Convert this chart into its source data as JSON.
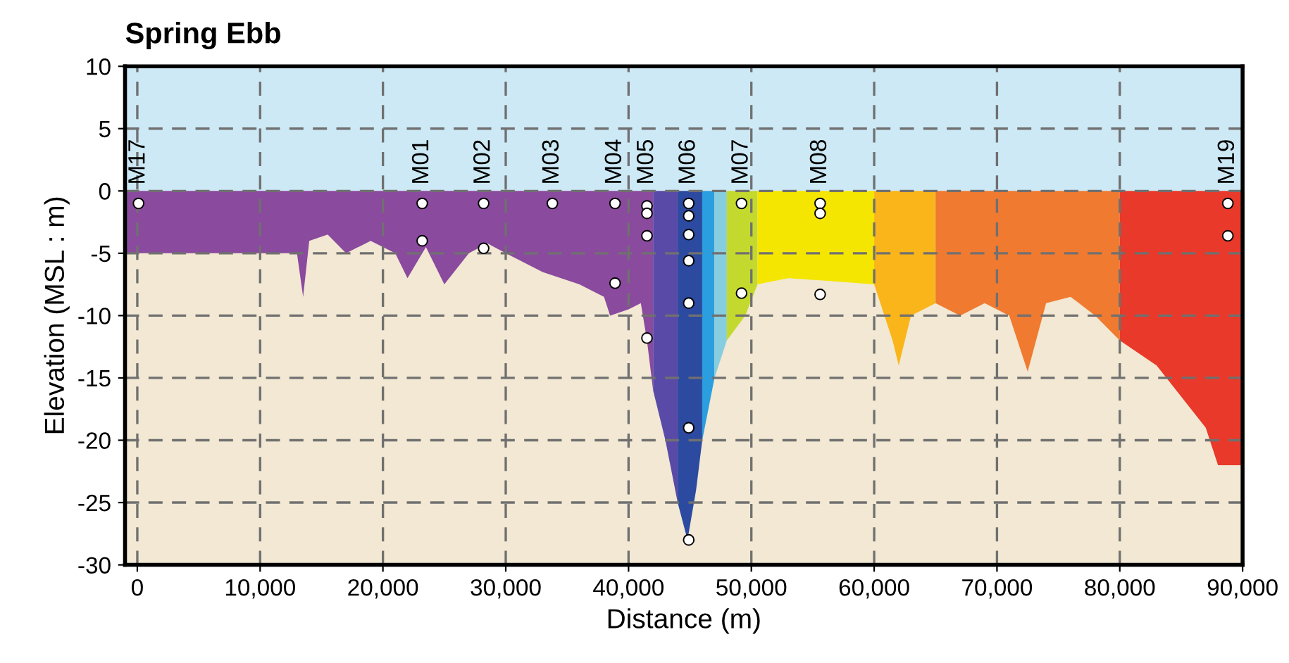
{
  "chart_data": {
    "type": "scatter",
    "title": "Spring Ebb",
    "xlabel": "Distance (m)",
    "ylabel": "Elevation (MSL : m)",
    "xlim": [
      -1000,
      90000
    ],
    "ylim": [
      -30,
      10
    ],
    "xticks": [
      {
        "value": 0,
        "label": "0"
      },
      {
        "value": 10000,
        "label": "10,000"
      },
      {
        "value": 20000,
        "label": "20,000"
      },
      {
        "value": 30000,
        "label": "30,000"
      },
      {
        "value": 40000,
        "label": "40,000"
      },
      {
        "value": 50000,
        "label": "50,000"
      },
      {
        "value": 60000,
        "label": "60,000"
      },
      {
        "value": 70000,
        "label": "70,000"
      },
      {
        "value": 80000,
        "label": "80,000"
      },
      {
        "value": 90000,
        "label": "90,000"
      }
    ],
    "yticks": [
      -30,
      -25,
      -20,
      -15,
      -10,
      -5,
      0,
      5,
      10
    ],
    "grid": true,
    "legend": false,
    "bands": [
      {
        "axis": "y",
        "from": 0,
        "to": 10,
        "label": null,
        "color": "#cde9f6"
      }
    ],
    "series": [
      {
        "type": "area",
        "color": "#8a4a9e",
        "x": [
          -1000,
          0,
          13000,
          13500,
          14000,
          15500,
          17000,
          19000,
          21000,
          22000,
          23500,
          25000,
          27000,
          28500,
          30000,
          33000,
          36000,
          38000,
          38500,
          40000,
          41000,
          41500,
          42000
        ],
        "values": [
          -5,
          -5,
          -5,
          -8.5,
          -4,
          -3.5,
          -5,
          -4,
          -5,
          -7,
          -4.5,
          -7.5,
          -5,
          -4.2,
          -5,
          -6.5,
          -7.5,
          -8.5,
          -10,
          -9.5,
          -9,
          -12,
          -16
        ]
      },
      {
        "type": "area",
        "color": "#5a4aa8",
        "x": [
          42000,
          43000,
          44000
        ],
        "values": [
          -16,
          -20,
          -25
        ]
      },
      {
        "type": "area",
        "color": "#2b4aa0",
        "x": [
          44000,
          44800,
          45500,
          46000
        ],
        "values": [
          -25,
          -28,
          -24,
          -20
        ]
      },
      {
        "type": "area",
        "color": "#2b9ee0",
        "x": [
          46000,
          47000
        ],
        "values": [
          -20,
          -15
        ]
      },
      {
        "type": "area",
        "color": "#87cde0",
        "x": [
          47000,
          48000
        ],
        "values": [
          -15,
          -12
        ]
      },
      {
        "type": "area",
        "color": "#c4d92e",
        "x": [
          48000,
          49500,
          50500
        ],
        "values": [
          -12,
          -10,
          -7.5
        ]
      },
      {
        "type": "area",
        "color": "#f4e600",
        "x": [
          50500,
          53000,
          56000,
          60000
        ],
        "values": [
          -7.5,
          -7,
          -7.2,
          -7.5
        ]
      },
      {
        "type": "area",
        "color": "#f9b51a",
        "x": [
          60000,
          61500,
          62000,
          63000,
          65000
        ],
        "values": [
          -7.5,
          -12,
          -14,
          -10,
          -9
        ]
      },
      {
        "type": "area",
        "color": "#f07a30",
        "x": [
          65000,
          67000,
          69000,
          71000,
          72500,
          74000,
          76000,
          78000,
          80000
        ],
        "values": [
          -9,
          -10,
          -9,
          -10,
          -14.5,
          -9,
          -8.5,
          -10,
          -12
        ]
      },
      {
        "type": "area",
        "color": "#e8392a",
        "x": [
          80000,
          83000,
          87000,
          88000,
          90000
        ],
        "values": [
          -12,
          -14,
          -19,
          -22,
          -22
        ]
      },
      {
        "color": "#ffffff",
        "marker": "circle",
        "x": [
          100,
          23200,
          23200,
          28200,
          28200,
          33800,
          38900,
          38900,
          41500,
          41500,
          41500,
          41500,
          44900,
          44900,
          44900,
          44900,
          44900,
          44900,
          44900,
          49200,
          49200,
          55600,
          55600,
          55600,
          88800,
          88800
        ],
        "values": [
          -1,
          -1,
          -4,
          -1,
          -4.6,
          -1,
          -1,
          -7.4,
          -1.2,
          -1.8,
          -3.6,
          -11.8,
          -1,
          -2,
          -3.5,
          -5.6,
          -9,
          -19,
          -28,
          -1,
          -8.2,
          -1,
          -1.8,
          -8.3,
          -1,
          -3.6
        ]
      }
    ],
    "annotations": [
      "M17",
      "M01",
      "M02",
      "M03",
      "M04",
      "M05",
      "M06",
      "M07",
      "M08",
      "M19"
    ]
  }
}
